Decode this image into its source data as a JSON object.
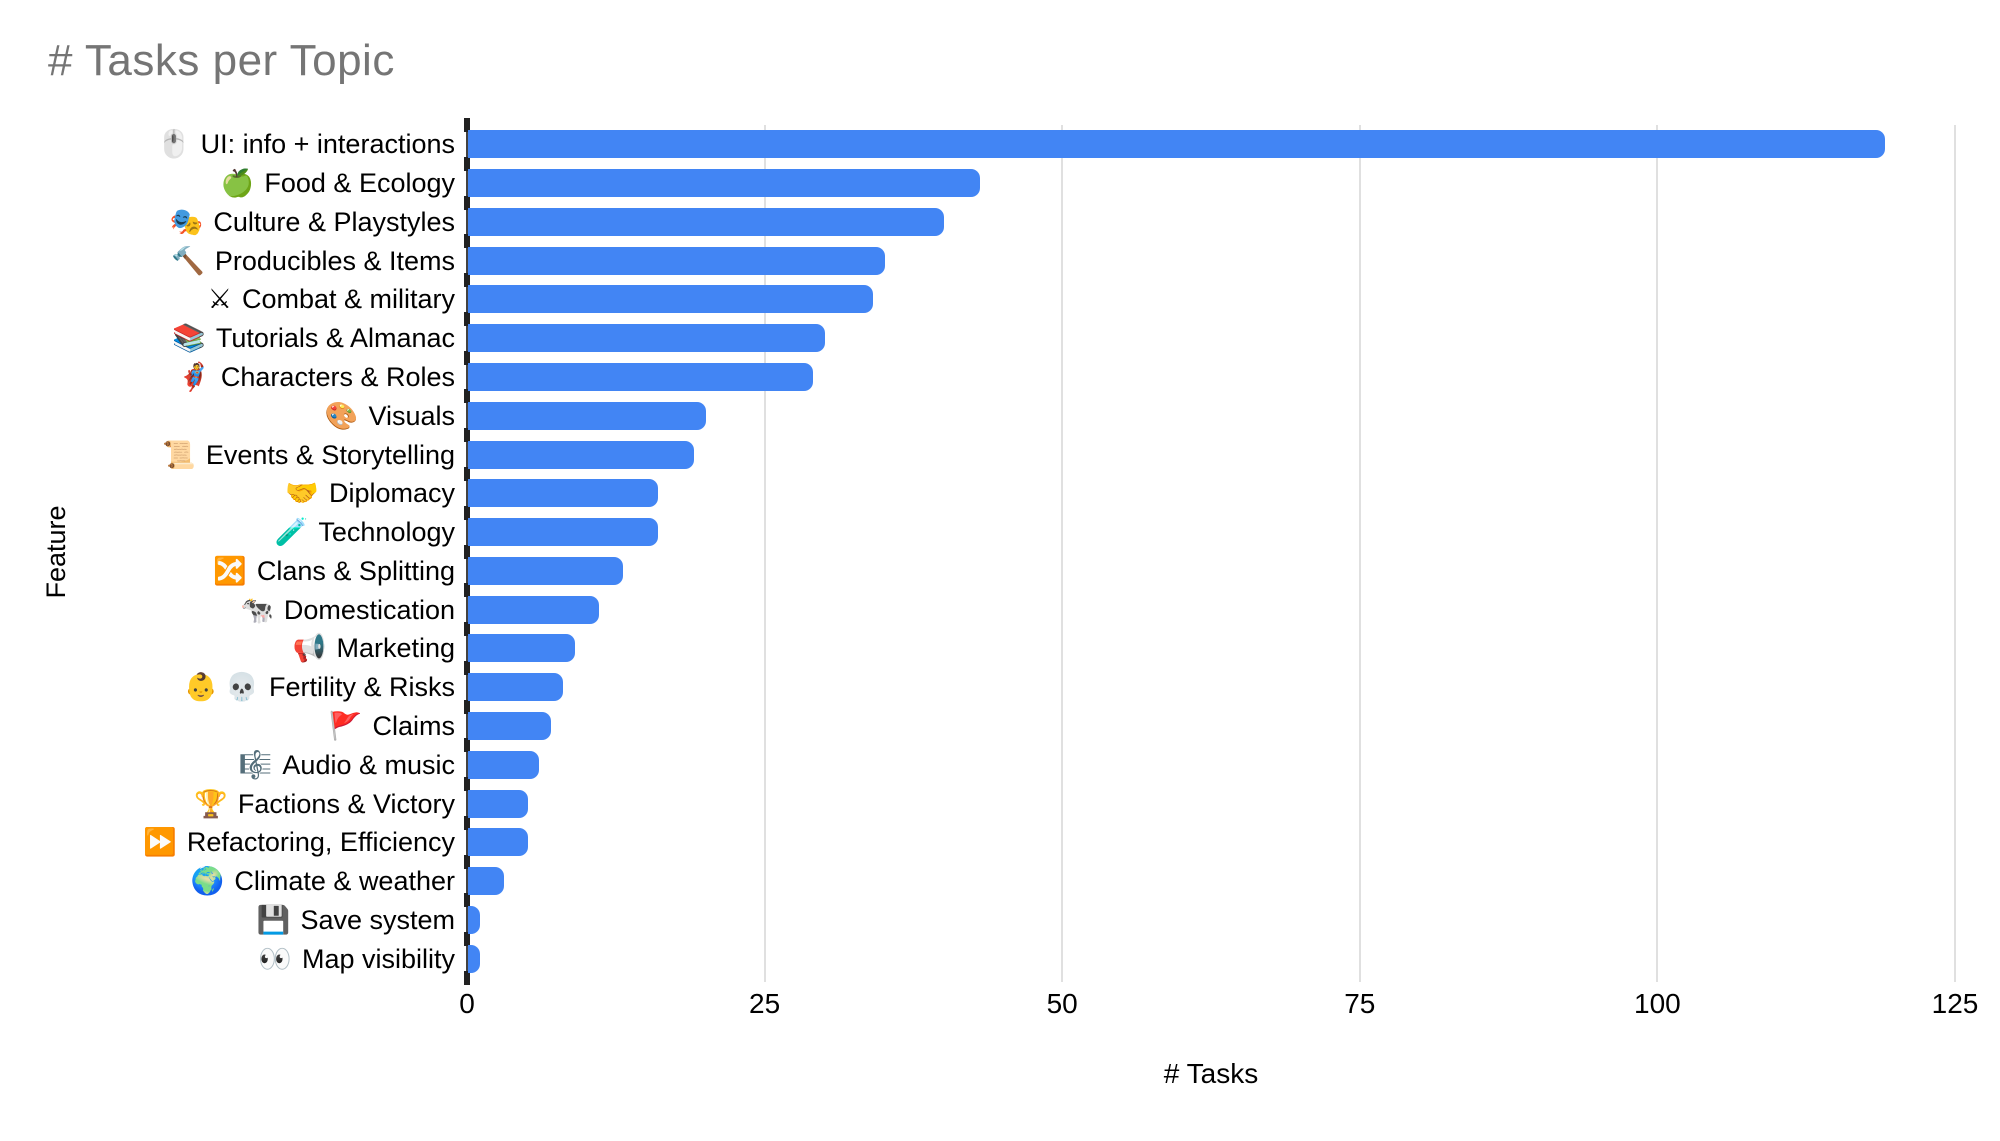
{
  "chart_data": {
    "type": "bar",
    "orientation": "horizontal",
    "title": "# Tasks per Topic",
    "xlabel": "# Tasks",
    "ylabel": "Feature",
    "xlim": [
      0,
      125
    ],
    "xticks": [
      0,
      25,
      50,
      75,
      100,
      125
    ],
    "grid": "vertical-light-gray",
    "legend": "none",
    "bar_color": "#4285f4",
    "gridline_color": "#e0e0e0",
    "title_color": "#757575",
    "categories": [
      {
        "icon": "🖱️",
        "label": "UI: info + interactions"
      },
      {
        "icon": "🍏",
        "label": "Food & Ecology"
      },
      {
        "icon": "🎭",
        "label": "Culture & Playstyles"
      },
      {
        "icon": "🔨",
        "label": "Producibles & Items"
      },
      {
        "icon": "⚔",
        "label": "Combat & military"
      },
      {
        "icon": "📚",
        "label": "Tutorials & Almanac"
      },
      {
        "icon": "🦸",
        "label": "Characters & Roles"
      },
      {
        "icon": "🎨",
        "label": "Visuals"
      },
      {
        "icon": "📜",
        "label": "Events & Storytelling"
      },
      {
        "icon": "🤝",
        "label": "Diplomacy"
      },
      {
        "icon": "🧪",
        "label": "Technology"
      },
      {
        "icon": "🔀",
        "label": "Clans & Splitting"
      },
      {
        "icon": "🐄",
        "label": "Domestication"
      },
      {
        "icon": "📢",
        "label": "Marketing"
      },
      {
        "icon": "👶 💀",
        "label": "Fertility & Risks"
      },
      {
        "icon": "🚩",
        "label": "Claims"
      },
      {
        "icon": "🎼",
        "label": "Audio & music"
      },
      {
        "icon": "🏆",
        "label": "Factions & Victory"
      },
      {
        "icon": "⏩",
        "label": "Refactoring, Efficiency"
      },
      {
        "icon": "🌍",
        "label": "Climate & weather"
      },
      {
        "icon": "💾",
        "label": "Save system"
      },
      {
        "icon": "👀",
        "label": "Map visibility"
      }
    ],
    "values": [
      119,
      43,
      40,
      35,
      34,
      30,
      29,
      20,
      19,
      16,
      16,
      13,
      11,
      9,
      8,
      7,
      6,
      5,
      5,
      3,
      1,
      1
    ]
  }
}
